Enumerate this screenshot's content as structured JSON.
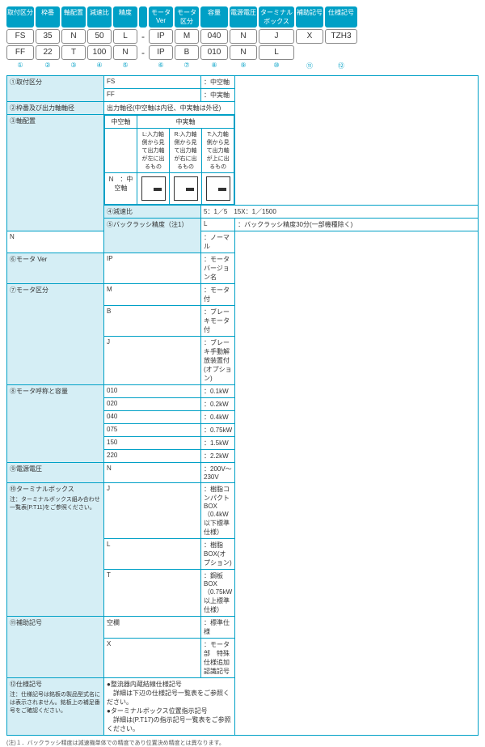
{
  "headers": [
    {
      "t": "取付区分",
      "w": "w34"
    },
    {
      "t": "枠番",
      "w": "w30"
    },
    {
      "t": "軸配置",
      "w": "w30"
    },
    {
      "t": "減速比",
      "w": "w30"
    },
    {
      "t": "精度",
      "w": "w30"
    },
    {
      "t": "",
      "w": "w10"
    },
    {
      "t": "モータ\nVer",
      "w": "w30"
    },
    {
      "t": "モータ\n区分",
      "w": "w30"
    },
    {
      "t": "容量",
      "w": "w34"
    },
    {
      "t": "電源電圧",
      "w": "w34"
    },
    {
      "t": "ターミナルボックス",
      "w": "w44"
    },
    {
      "t": "補助記号",
      "w": "w34"
    },
    {
      "t": "仕様記号",
      "w": "w40"
    }
  ],
  "row1": [
    "FS",
    "35",
    "N",
    "50",
    "L",
    "-",
    "IP",
    "M",
    "040",
    "N",
    "J",
    "X",
    "TZH3"
  ],
  "row2": [
    "FF",
    "22",
    "T",
    "100",
    "N",
    "-",
    "IP",
    "B",
    "010",
    "N",
    "L",
    "",
    ""
  ],
  "nums": [
    "①",
    "②",
    "③",
    "④",
    "⑤",
    "",
    "⑥",
    "⑦",
    "⑧",
    "⑨",
    "⑩",
    "⑪",
    "⑫"
  ],
  "sections": [
    {
      "n": "①取付区分",
      "rows": [
        [
          "FS",
          "：中空軸"
        ],
        [
          "FF",
          "：中実軸"
        ]
      ]
    },
    {
      "n": "②枠番及び出力軸軸径",
      "rows": [
        [
          "",
          "出力軸径(中空軸は内径、中実軸は外径)"
        ]
      ]
    }
  ],
  "shaft": {
    "label": "③軸配置",
    "head": [
      "中空軸",
      "中実軸"
    ],
    "sub": [
      "",
      "L:入力軸側から見て出力軸が左に出るもの",
      "R:入力軸側から見て出力軸が右に出るもの",
      "T:入力軸側から見て出力軸が上に出るもの"
    ],
    "n": "N",
    "ntext": "：中空軸"
  },
  "sections2": [
    {
      "n": "④減速比",
      "rows": [
        [
          "",
          "5：1／5　15X：1／1500"
        ]
      ]
    },
    {
      "n": "⑤バックラッシ精度（注1）",
      "rows": [
        [
          "L",
          "：バックラッシ精度30分(一部機種除く)"
        ],
        [
          "N",
          "：ノーマル"
        ]
      ]
    },
    {
      "n": "⑥モータ Ver",
      "rows": [
        [
          "IP",
          "：モータバージョン名"
        ]
      ]
    },
    {
      "n": "⑦モータ区分",
      "rows": [
        [
          "M",
          "：モータ付"
        ],
        [
          "B",
          "：ブレーキモータ付"
        ],
        [
          "J",
          "：ブレーキ手動解放装置付(オプション)"
        ]
      ]
    },
    {
      "n": "⑧モータ呼称と容量",
      "rows": [
        [
          "010",
          "：0.1kW"
        ],
        [
          "020",
          "：0.2kW"
        ],
        [
          "040",
          "：0.4kW"
        ],
        [
          "075",
          "：0.75kW"
        ],
        [
          "150",
          "：1.5kW"
        ],
        [
          "220",
          "：2.2kW"
        ]
      ]
    },
    {
      "n": "⑨電源電圧",
      "rows": [
        [
          "N",
          "：200V～230V"
        ]
      ]
    },
    {
      "n": "⑩ターミナルボックス",
      "note": "注：ターミナルボックス組み合わせ一覧表(P.T11)をご参照ください。",
      "rows": [
        [
          "J",
          "：樹脂コンパクトBOX（0.4kW以下標準仕様）"
        ],
        [
          "L",
          "：樹脂BOX(オプション)"
        ],
        [
          "T",
          "：鋼板BOX（0.75kW以上標準仕様）"
        ]
      ]
    },
    {
      "n": "⑪補助記号",
      "rows": [
        [
          "空欄",
          "：標準仕様"
        ],
        [
          "X",
          "：モータ部　特殊仕様追加認識記号"
        ]
      ]
    },
    {
      "n": "⑫仕様記号",
      "note": "注：仕様記号は銘板の製品型式名には表示されません。銘板上の補足番号をご確認ください。",
      "rows": [
        [
          "",
          "●整流器内蔵結線仕様記号\n　詳細は下辺の仕様記号一覧表をご参照ください。\n●ターミナルボックス位置指示記号\n　詳細は(P.T17)の指示記号一覧表をご参照ください。"
        ]
      ]
    }
  ],
  "footnote": "(注)１．バックラッシ精度は減速機単体での精度であり位置決め精度とは異なります。"
}
